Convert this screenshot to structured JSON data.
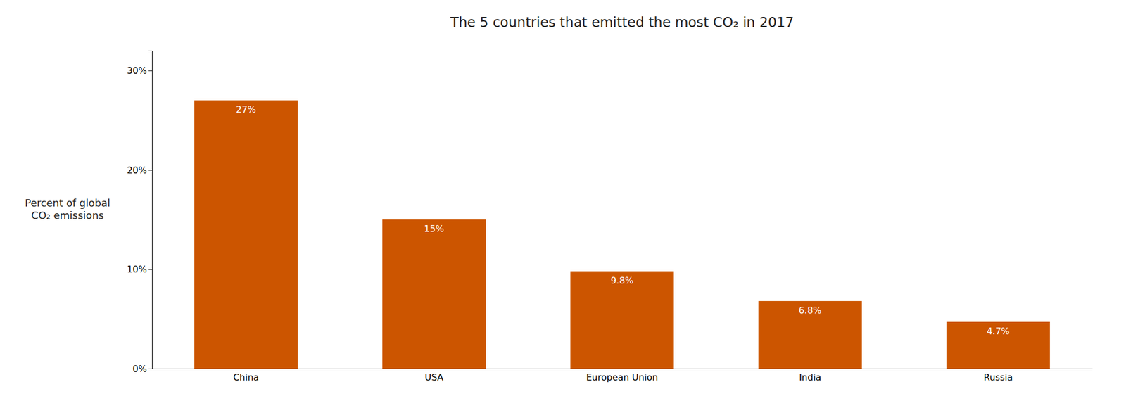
{
  "chart_data": {
    "type": "bar",
    "title": "The 5 countries that emitted the most CO₂ in 2017",
    "ylabel": "Percent of global\nCO₂ emissions",
    "categories": [
      "China",
      "USA",
      "European Union",
      "India",
      "Russia"
    ],
    "values": [
      27,
      15,
      9.8,
      6.8,
      4.7
    ],
    "value_labels": [
      "27%",
      "15%",
      "9.8%",
      "6.8%",
      "4.7%"
    ],
    "data_labels": true,
    "color": "#CC5500",
    "ylim": [
      0,
      32
    ],
    "yticks": [
      {
        "value": 0,
        "label": "0%"
      },
      {
        "value": 10,
        "label": "10%"
      },
      {
        "value": 20,
        "label": "20%"
      },
      {
        "value": 30,
        "label": "30%"
      }
    ],
    "grid": false
  }
}
